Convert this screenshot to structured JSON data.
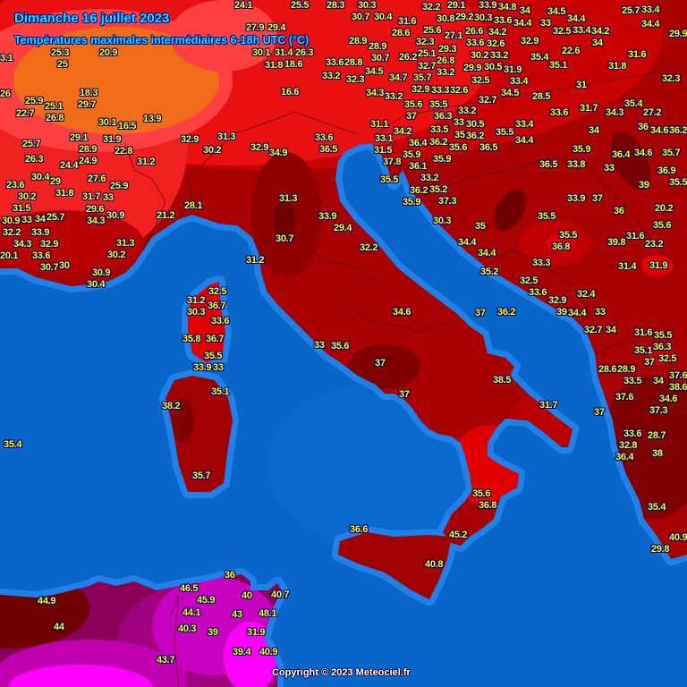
{
  "header": {
    "title": "Dimanche 16 juillet 2023",
    "subtitle": "Températures maximales intermédiaires 6-18h UTC (°C)"
  },
  "footer": {
    "copyright": "Copyright © 2023 Meteociel.fr"
  },
  "colors": {
    "sea": "#0866c8",
    "sea_coast": "#1f80e8",
    "land_base": "#a80000",
    "hot_dark": "#780000",
    "warm_red": "#e81010",
    "orange": "#f06c18",
    "extreme_magenta": "#c800c0",
    "label_text": "#ffff00",
    "title_text": "#00e8ff"
  },
  "labels": [
    "20.9",
    "25.3",
    "25",
    "3.1",
    "26",
    "25.9",
    "25.1",
    "22.7",
    "26.8",
    "29.7",
    "18.3",
    "30.1",
    "16.5",
    "13.9",
    "31.9",
    "22.8",
    "31.2",
    "29.1",
    "28.9",
    "24.9",
    "25.7",
    "26.3",
    "24.4",
    "23.6",
    "30.4",
    "29",
    "30.2",
    "31.5",
    "31.8",
    "31.7",
    "27.6",
    "25.9",
    "33",
    "29.6",
    "30.9",
    "32.2",
    "33",
    "34",
    "25.7",
    "34.3",
    "30.9",
    "33.9",
    "34.3",
    "32.9",
    "33.6",
    "30.7",
    "30",
    "31.3",
    "30.2",
    "30.9",
    "30.4",
    "20.1",
    "21.2",
    "28.1",
    "24.1",
    "25.5",
    "28.3",
    "30.3",
    "32.2",
    "29.1",
    "33.9",
    "34.8",
    "34",
    "34.5",
    "25.7",
    "33.4",
    "31.6",
    "30.4",
    "30.7",
    "30.8",
    "29.2",
    "30.3",
    "33.6",
    "34.4",
    "34.2",
    "34.4",
    "33",
    "32.5",
    "33.4",
    "34.4",
    "27.9",
    "29.4",
    "28.6",
    "25.6",
    "27.1",
    "26.6",
    "32.6",
    "34.2",
    "34",
    "29.9",
    "28.9",
    "30.1",
    "26.3",
    "32.3",
    "33.6",
    "32.9",
    "33.2",
    "30.2",
    "22.6",
    "25.1",
    "29.3",
    "28.9",
    "30.7",
    "26.2",
    "26.8",
    "18.6",
    "28.8",
    "31.4",
    "31.8",
    "35.4",
    "35.1",
    "31.6",
    "31.8",
    "32.7",
    "33.2",
    "29.9",
    "30.5",
    "31.9",
    "33.4",
    "33.2",
    "32.3",
    "33.6",
    "34.5",
    "34.7",
    "35.7",
    "32.5",
    "31",
    "32.3",
    "16.6",
    "32.9",
    "33.3",
    "32.6",
    "33.2",
    "34.3",
    "34.5",
    "28.5",
    "32.7",
    "35.6",
    "37",
    "35.5",
    "36.3",
    "33.2",
    "31.7",
    "35.4",
    "34.3",
    "27.2",
    "33.6",
    "34.2",
    "33.5",
    "33",
    "30.5",
    "36.2",
    "35",
    "35.5",
    "33.4",
    "36.4",
    "36.2",
    "35.6",
    "36.5",
    "34.4",
    "34",
    "36",
    "34.6",
    "36.2",
    "35.9",
    "36.1",
    "35.9",
    "35.9",
    "36.4",
    "34.6",
    "35.7",
    "36.5",
    "33.8",
    "33",
    "36.9",
    "35.5",
    "33.2",
    "35.2",
    "36.2",
    "39",
    "35.9",
    "37.3",
    "33.9",
    "37",
    "35.5",
    "36",
    "20.2",
    "30.3",
    "35",
    "35.6",
    "35.5",
    "36.8",
    "39.8",
    "31.6",
    "23.2",
    "34.4",
    "34.4",
    "33.3",
    "31.4",
    "31.9",
    "35.2",
    "32.5",
    "33.6",
    "32.9",
    "39",
    "32.4",
    "37",
    "36.2",
    "34.4",
    "33",
    "32.7",
    "34",
    "31.6",
    "35.5",
    "32.9",
    "31.3",
    "30.2",
    "32.9",
    "34.9",
    "33.6",
    "36.5",
    "33.1",
    "31.5",
    "37.8",
    "35.5",
    "31.3",
    "33.9",
    "29.4",
    "30.7",
    "32.2",
    "31.2",
    "31.1",
    "32.5",
    "31.2",
    "30.3",
    "36.7",
    "33.6",
    "35.8",
    "36.7",
    "35.5",
    "33.9",
    "33",
    "35.1",
    "38.2",
    "35.7",
    "34.6",
    "33",
    "35.6",
    "37",
    "37",
    "38.5",
    "31.7",
    "37",
    "28.6",
    "28.9",
    "33.5",
    "36.3",
    "35.1",
    "32.5",
    "37",
    "34",
    "37.6",
    "38.6",
    "34.6",
    "37.6",
    "37.3",
    "33.6",
    "28.7",
    "32.8",
    "36.4",
    "38",
    "35.6",
    "36.8",
    "35.4",
    "29.8",
    "40.9",
    "36.6",
    "45.2",
    "40.8",
    "35.4",
    "36",
    "46.5",
    "45.9",
    "40",
    "40.7",
    "44.9",
    "44.1",
    "43",
    "48.1",
    "44",
    "40.3",
    "39",
    "31.9",
    "39.4",
    "40.9",
    "43.7"
  ]
}
